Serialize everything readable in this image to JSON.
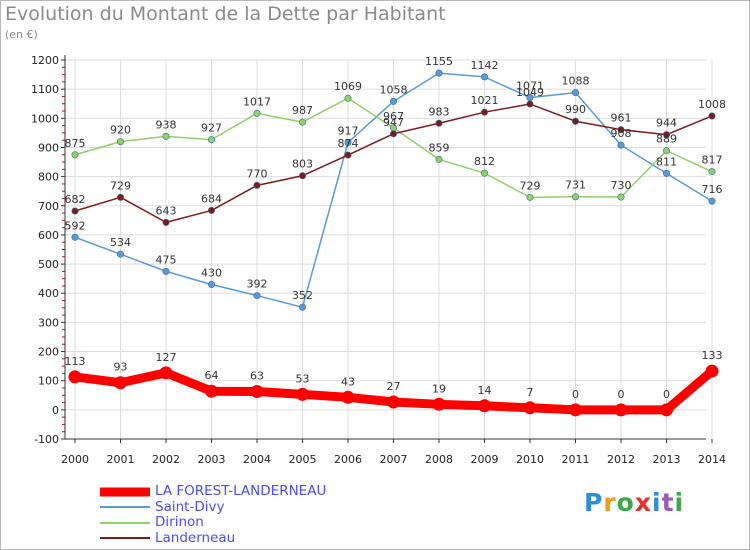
{
  "title": "Evolution du Montant de la Dette par Habitant",
  "subtitle": "(en €)",
  "colors": {
    "axis": "#333333",
    "grid": "#dddddd",
    "minor_tick": "#cc0000"
  },
  "logo": {
    "text": "Proxiti",
    "letter_colors": [
      "#2b8fd6",
      "#f39a1b",
      "#3aa94a",
      "#e5332a",
      "#2b8fd6",
      "#9b59b6",
      "#3aa94a"
    ]
  },
  "chart_data": {
    "type": "line",
    "title": "Evolution du Montant de la Dette par Habitant",
    "subtitle": "(en €)",
    "ylim": [
      -100,
      1200
    ],
    "grid": true,
    "legend_position": "bottom-left",
    "x": [
      "2000",
      "2001",
      "2002",
      "2003",
      "2004",
      "2005",
      "2006",
      "2007",
      "2008",
      "2009",
      "2010",
      "2011",
      "2012",
      "2013",
      "2014"
    ],
    "yticks": [
      "-100",
      "0",
      "100",
      "200",
      "300",
      "400",
      "500",
      "600",
      "700",
      "800",
      "900",
      "1000",
      "1100",
      "1200"
    ],
    "series": [
      {
        "name": "LA FOREST-LANDERNEAU",
        "color": "#ff0000",
        "label_color": "#4a4aff",
        "emphasis": true,
        "values": [
          113,
          93,
          127,
          64,
          63,
          53,
          43,
          27,
          19,
          14,
          7,
          0,
          0,
          0,
          133
        ],
        "labels": [
          "113",
          "93",
          "127",
          "64",
          "63",
          "53",
          "43",
          "27",
          "19",
          "14",
          "7",
          "0",
          "0",
          "0",
          "133"
        ]
      },
      {
        "name": "Saint-Divy",
        "color": "#5a9bd5",
        "label_color": "#4a4aff",
        "values": [
          592,
          534,
          475,
          430,
          392,
          352,
          917,
          1058,
          1155,
          1142,
          1071,
          1088,
          908,
          811,
          716
        ],
        "labels": [
          "592",
          "534",
          "475",
          "430",
          "392",
          "352",
          "917",
          "1058",
          "1155",
          "1142",
          "1071",
          "1088",
          "908",
          "811",
          "716"
        ]
      },
      {
        "name": "Dirinon",
        "color": "#8fd16a",
        "label_color": "#4a4aff",
        "values": [
          875,
          920,
          938,
          927,
          1017,
          987,
          1069,
          967,
          859,
          812,
          729,
          731,
          730,
          889,
          817
        ],
        "labels": [
          "875",
          "920",
          "938",
          "927",
          "1017",
          "987",
          "1069",
          "967",
          "859",
          "812",
          "729",
          "731",
          "730",
          "889",
          "817"
        ]
      },
      {
        "name": "Landerneau",
        "color": "#7a1c1c",
        "label_color": "#4a4aff",
        "values": [
          682,
          729,
          643,
          684,
          770,
          803,
          874,
          947,
          983,
          1021,
          1049,
          990,
          961,
          944,
          1008
        ],
        "labels": [
          "682",
          "729",
          "643",
          "684",
          "770",
          "803",
          "874",
          "947",
          "983",
          "1021",
          "1049",
          "990",
          "961",
          "944",
          "1008"
        ]
      }
    ]
  }
}
